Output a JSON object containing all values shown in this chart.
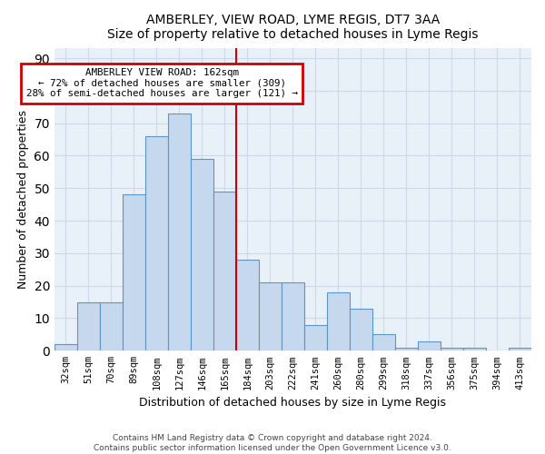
{
  "title": "AMBERLEY, VIEW ROAD, LYME REGIS, DT7 3AA",
  "subtitle": "Size of property relative to detached houses in Lyme Regis",
  "xlabel": "Distribution of detached houses by size in Lyme Regis",
  "ylabel": "Number of detached properties",
  "categories": [
    "32sqm",
    "51sqm",
    "70sqm",
    "89sqm",
    "108sqm",
    "127sqm",
    "146sqm",
    "165sqm",
    "184sqm",
    "203sqm",
    "222sqm",
    "241sqm",
    "260sqm",
    "280sqm",
    "299sqm",
    "318sqm",
    "337sqm",
    "356sqm",
    "375sqm",
    "394sqm",
    "413sqm"
  ],
  "bar_values": [
    2,
    15,
    15,
    48,
    66,
    73,
    59,
    49,
    28,
    21,
    21,
    8,
    18,
    13,
    5,
    1,
    3,
    1,
    1,
    0,
    1
  ],
  "bar_color": "#c5d8ed",
  "bar_edge_color": "#5a96c8",
  "vline_color": "#cc0000",
  "vline_pos": 7.5,
  "ylim": [
    0,
    93
  ],
  "yticks": [
    0,
    10,
    20,
    30,
    40,
    50,
    60,
    70,
    80,
    90
  ],
  "annotation_title": "AMBERLEY VIEW ROAD: 162sqm",
  "annotation_line1": "← 72% of detached houses are smaller (309)",
  "annotation_line2": "28% of semi-detached houses are larger (121) →",
  "annotation_box_edgecolor": "#cc0000",
  "grid_color": "#ccd9e8",
  "background_color": "#e8f0f8",
  "footer1": "Contains HM Land Registry data © Crown copyright and database right 2024.",
  "footer2": "Contains public sector information licensed under the Open Government Licence v3.0."
}
